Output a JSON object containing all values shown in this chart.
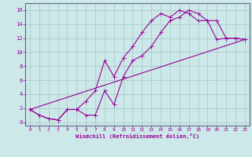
{
  "xlabel": "Windchill (Refroidissement éolien,°C)",
  "background_color": "#cce8e8",
  "grid_color": "#aacccc",
  "line_color": "#990099",
  "xlim": [
    -0.5,
    23.5
  ],
  "ylim": [
    -0.5,
    17.0
  ],
  "xticks": [
    0,
    1,
    2,
    3,
    4,
    5,
    6,
    7,
    8,
    9,
    10,
    11,
    12,
    13,
    14,
    15,
    16,
    17,
    18,
    19,
    20,
    21,
    22,
    23
  ],
  "yticks": [
    0,
    2,
    4,
    6,
    8,
    10,
    12,
    14,
    16
  ],
  "line1_x": [
    0,
    1,
    2,
    3,
    4,
    5,
    6,
    7,
    8,
    9,
    10,
    11,
    12,
    13,
    14,
    15,
    16,
    17,
    18,
    19,
    20,
    21,
    22,
    23
  ],
  "line1_y": [
    1.8,
    1.0,
    0.5,
    0.3,
    1.8,
    1.8,
    1.0,
    1.0,
    4.5,
    2.5,
    6.5,
    8.8,
    9.5,
    10.8,
    12.8,
    14.5,
    15.0,
    16.0,
    15.5,
    14.5,
    11.8,
    12.0,
    12.0,
    11.8
  ],
  "line2_x": [
    0,
    1,
    2,
    3,
    4,
    5,
    6,
    7,
    8,
    9,
    10,
    11,
    12,
    13,
    14,
    15,
    16,
    17,
    18,
    19,
    20,
    21,
    22,
    23
  ],
  "line2_y": [
    1.8,
    1.0,
    0.5,
    0.3,
    1.8,
    1.8,
    3.0,
    4.5,
    8.8,
    6.5,
    9.2,
    10.8,
    12.8,
    14.5,
    15.5,
    15.0,
    16.0,
    15.5,
    14.5,
    14.5,
    14.5,
    12.0,
    12.0,
    11.8
  ],
  "line3_x": [
    0,
    23
  ],
  "line3_y": [
    1.8,
    11.8
  ],
  "markersize": 2.0,
  "linewidth": 0.8
}
